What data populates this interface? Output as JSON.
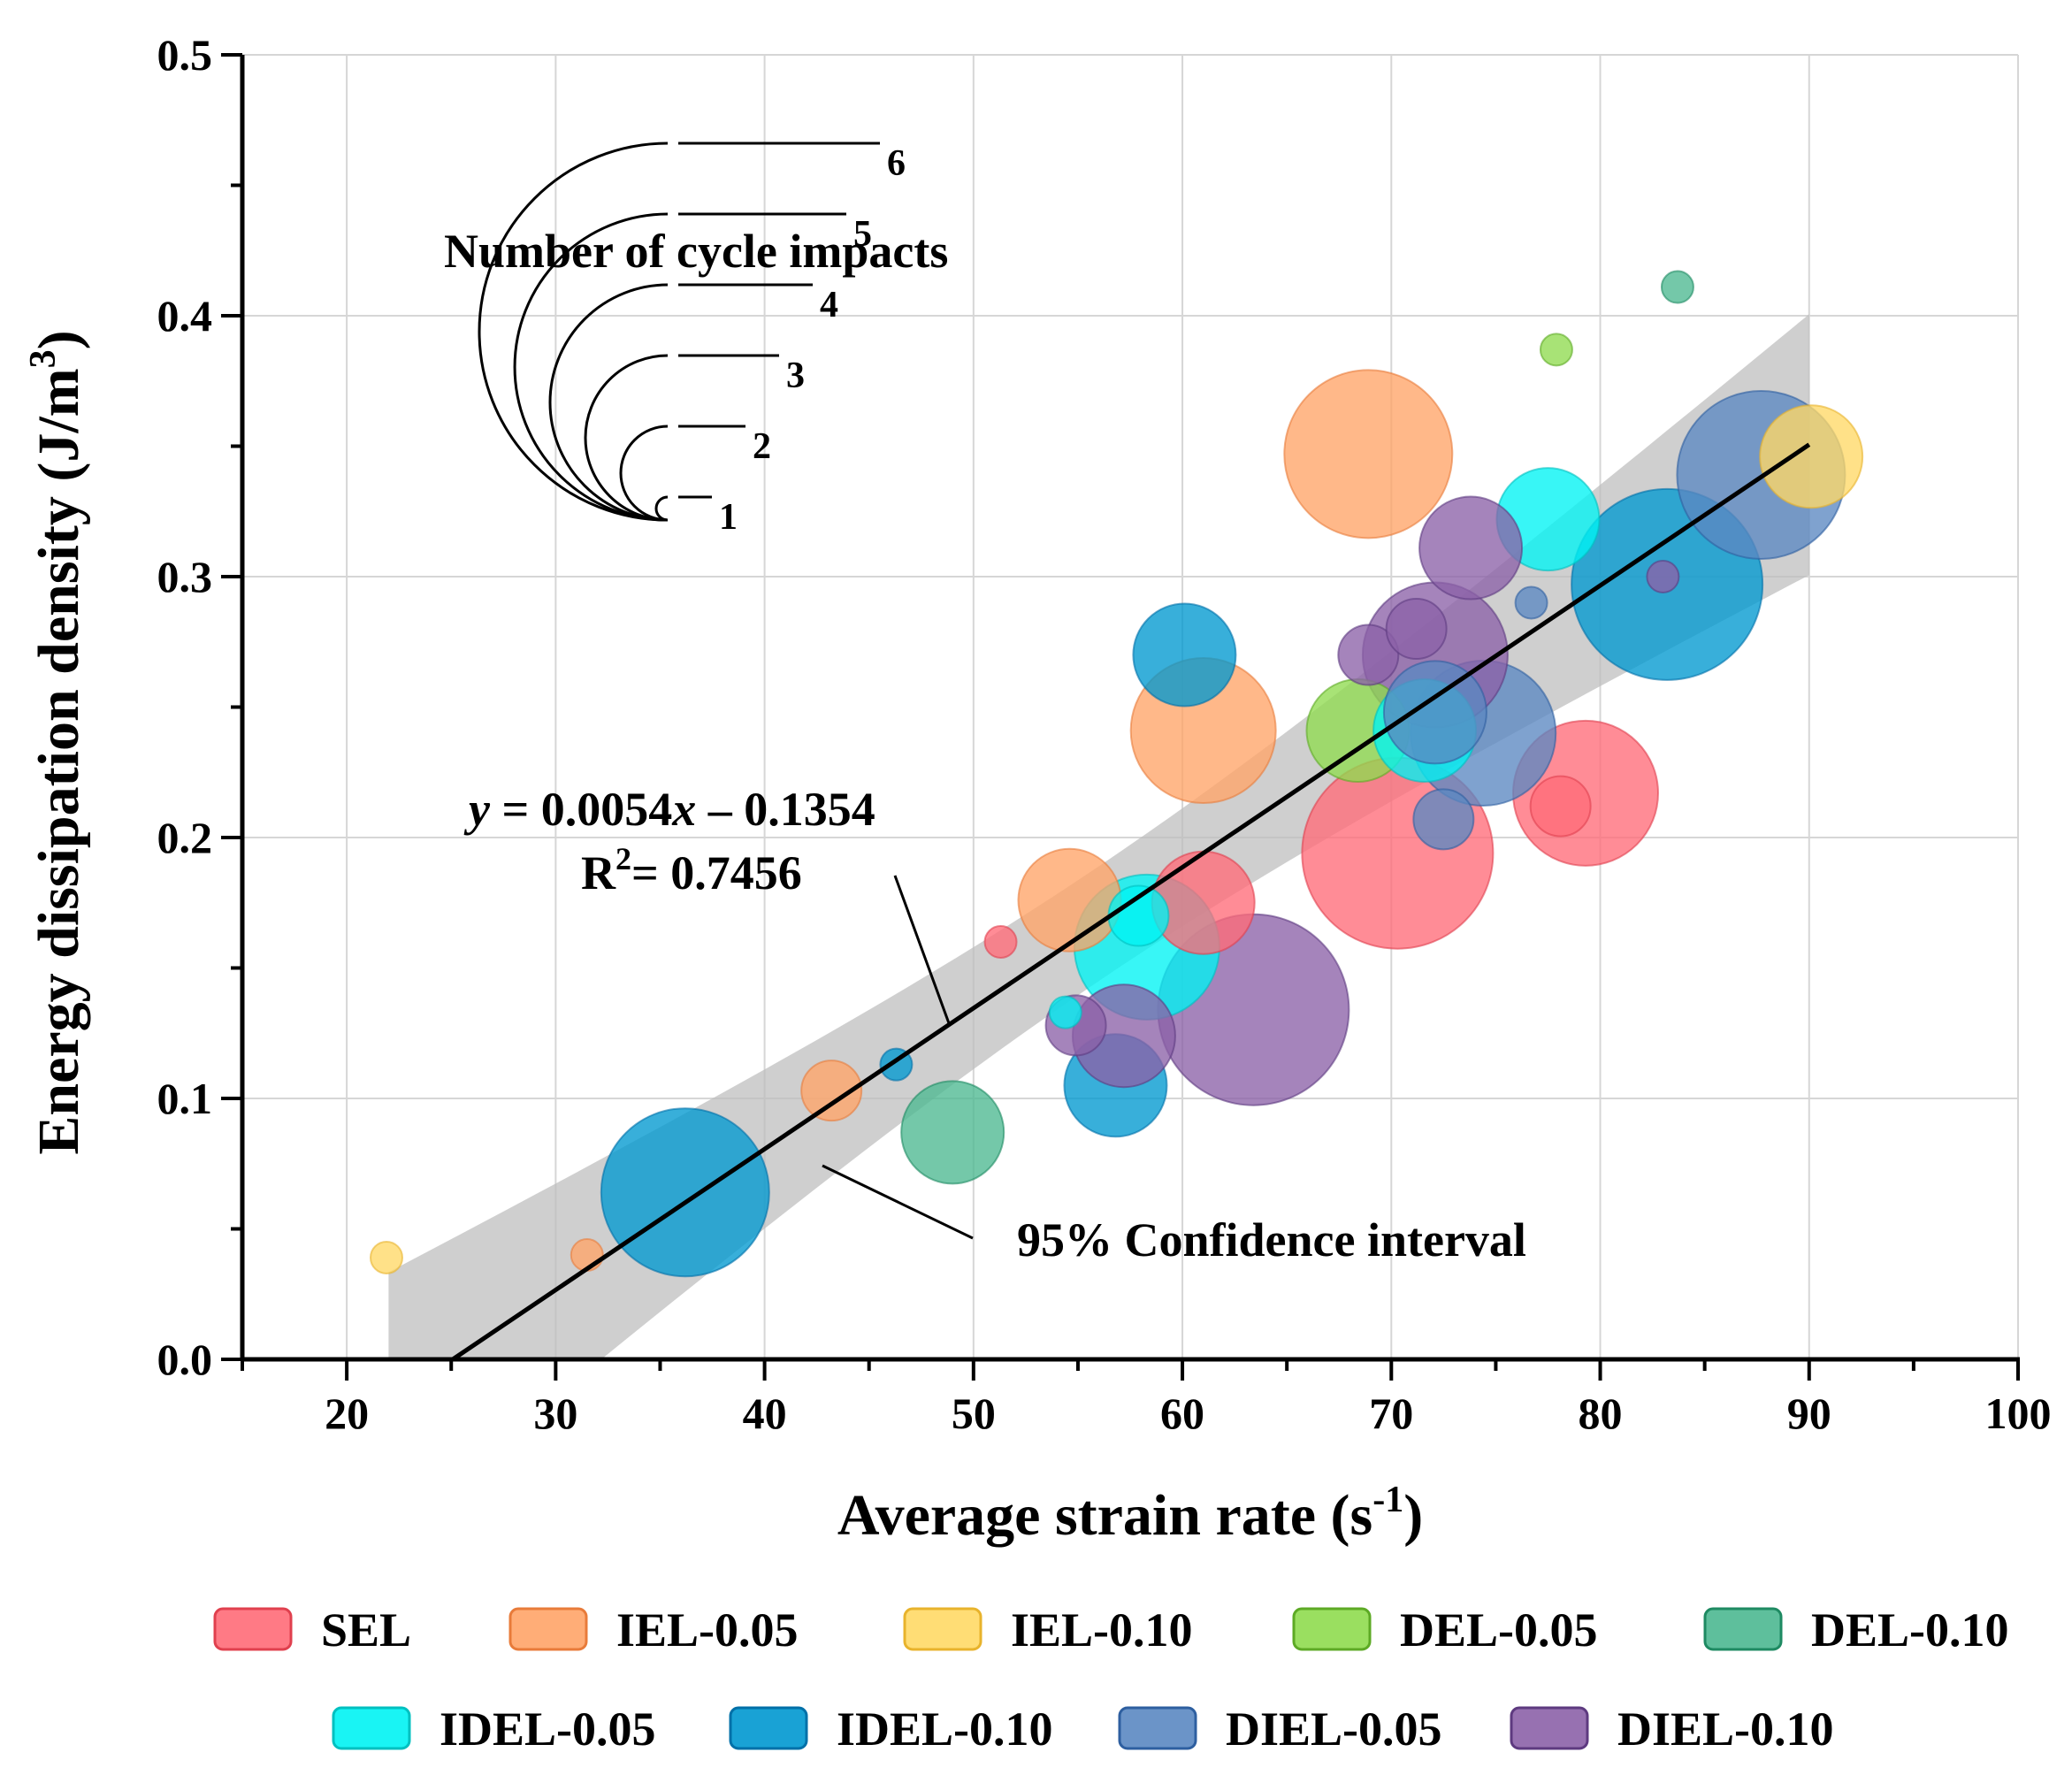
{
  "chart_data": {
    "type": "scatter",
    "subtype": "bubble",
    "xlabel": "Average strain rate (s",
    "xlabel_sup": "-1",
    "xlabel_end": ")",
    "ylabel": "Energy dissipation density (J/m",
    "ylabel_sup": "3",
    "ylabel_end": ")",
    "xlim": [
      15,
      100
    ],
    "ylim": [
      0,
      0.5
    ],
    "xticks": [
      "20",
      "30",
      "40",
      "50",
      "60",
      "70",
      "80",
      "90",
      "100"
    ],
    "yticks": [
      "0.0",
      "0.1",
      "0.2",
      "0.3",
      "0.4",
      "0.5"
    ],
    "grid": true,
    "fit": {
      "equation_italic_y": "y",
      "equation_mid": " = 0.0054",
      "equation_italic_x": "x",
      "equation_end": " – 0.1354",
      "r2_label": "R",
      "r2_sup": "2",
      "r2_value": "= 0.7456",
      "slope": 0.0054,
      "intercept": -0.1354,
      "x_range": [
        22,
        90
      ],
      "ci_half_width_center": 0.022,
      "ci_half_width_edge": 0.05,
      "ci_label": "95% Confidence interval"
    },
    "size_legend": {
      "title": "Number of cycle impacts",
      "levels": [
        "1",
        "2",
        "3",
        "4",
        "5",
        "6"
      ]
    },
    "series": [
      {
        "name": "SEL",
        "color": "#FF6B78",
        "edge": "#E0404E",
        "points": [
          {
            "x": 51.3,
            "y": 0.16,
            "n": 1
          },
          {
            "x": 61,
            "y": 0.175,
            "n": 3
          },
          {
            "x": 78.1,
            "y": 0.212,
            "n": 2
          },
          {
            "x": 79.3,
            "y": 0.217,
            "n": 4
          },
          {
            "x": 70.3,
            "y": 0.194,
            "n": 6
          }
        ]
      },
      {
        "name": "IEL-0.05",
        "color": "#FFA468",
        "edge": "#E87B3A",
        "points": [
          {
            "x": 31.5,
            "y": 0.04,
            "n": 1
          },
          {
            "x": 43.2,
            "y": 0.103,
            "n": 2
          },
          {
            "x": 54.6,
            "y": 0.176,
            "n": 3
          },
          {
            "x": 61,
            "y": 0.241,
            "n": 4
          },
          {
            "x": 68.9,
            "y": 0.347,
            "n": 5
          }
        ]
      },
      {
        "name": "IEL-0.10",
        "color": "#FFD966",
        "edge": "#E8B32C",
        "points": [
          {
            "x": 21.9,
            "y": 0.039,
            "n": 1
          },
          {
            "x": 90.1,
            "y": 0.346,
            "n": 3
          }
        ]
      },
      {
        "name": "DEL-0.05",
        "color": "#8FDB4F",
        "edge": "#5DAA25",
        "points": [
          {
            "x": 77.9,
            "y": 0.387,
            "n": 1
          },
          {
            "x": 68.4,
            "y": 0.241,
            "n": 3
          }
        ]
      },
      {
        "name": "DEL-0.10",
        "color": "#4DB891",
        "edge": "#1E8A62",
        "points": [
          {
            "x": 83.7,
            "y": 0.411,
            "n": 1
          },
          {
            "x": 49,
            "y": 0.087,
            "n": 3
          }
        ]
      },
      {
        "name": "IDEL-0.05",
        "color": "#00F3F3",
        "edge": "#00C0C0",
        "points": [
          {
            "x": 54.4,
            "y": 0.133,
            "n": 1
          },
          {
            "x": 57.9,
            "y": 0.17,
            "n": 2
          },
          {
            "x": 77.5,
            "y": 0.322,
            "n": 3
          },
          {
            "x": 71.6,
            "y": 0.241,
            "n": 3
          },
          {
            "x": 58.3,
            "y": 0.158,
            "n": 4
          }
        ]
      },
      {
        "name": "IDEL-0.10",
        "color": "#0098D0",
        "edge": "#0070A8",
        "points": [
          {
            "x": 46.3,
            "y": 0.113,
            "n": 1
          },
          {
            "x": 56.8,
            "y": 0.105,
            "n": 3
          },
          {
            "x": 60.1,
            "y": 0.27,
            "n": 3
          },
          {
            "x": 36.2,
            "y": 0.064,
            "n": 5
          },
          {
            "x": 83.2,
            "y": 0.297,
            "n": 6
          }
        ]
      },
      {
        "name": "DIEL-0.05",
        "color": "#5B88C2",
        "edge": "#2E5FA0",
        "points": [
          {
            "x": 76.7,
            "y": 0.29,
            "n": 1
          },
          {
            "x": 72.5,
            "y": 0.207,
            "n": 2
          },
          {
            "x": 72.1,
            "y": 0.248,
            "n": 3
          },
          {
            "x": 74.4,
            "y": 0.24,
            "n": 4
          },
          {
            "x": 87.7,
            "y": 0.339,
            "n": 5
          }
        ]
      },
      {
        "name": "DIEL-0.10",
        "color": "#8C62A8",
        "edge": "#5E3A80",
        "points": [
          {
            "x": 83,
            "y": 0.3,
            "n": 1
          },
          {
            "x": 54.9,
            "y": 0.128,
            "n": 2
          },
          {
            "x": 68.9,
            "y": 0.27,
            "n": 2
          },
          {
            "x": 71.2,
            "y": 0.28,
            "n": 2
          },
          {
            "x": 73.8,
            "y": 0.311,
            "n": 3
          },
          {
            "x": 57.2,
            "y": 0.124,
            "n": 3
          },
          {
            "x": 72.1,
            "y": 0.27,
            "n": 4
          },
          {
            "x": 63.4,
            "y": 0.134,
            "n": 6
          }
        ]
      }
    ]
  }
}
